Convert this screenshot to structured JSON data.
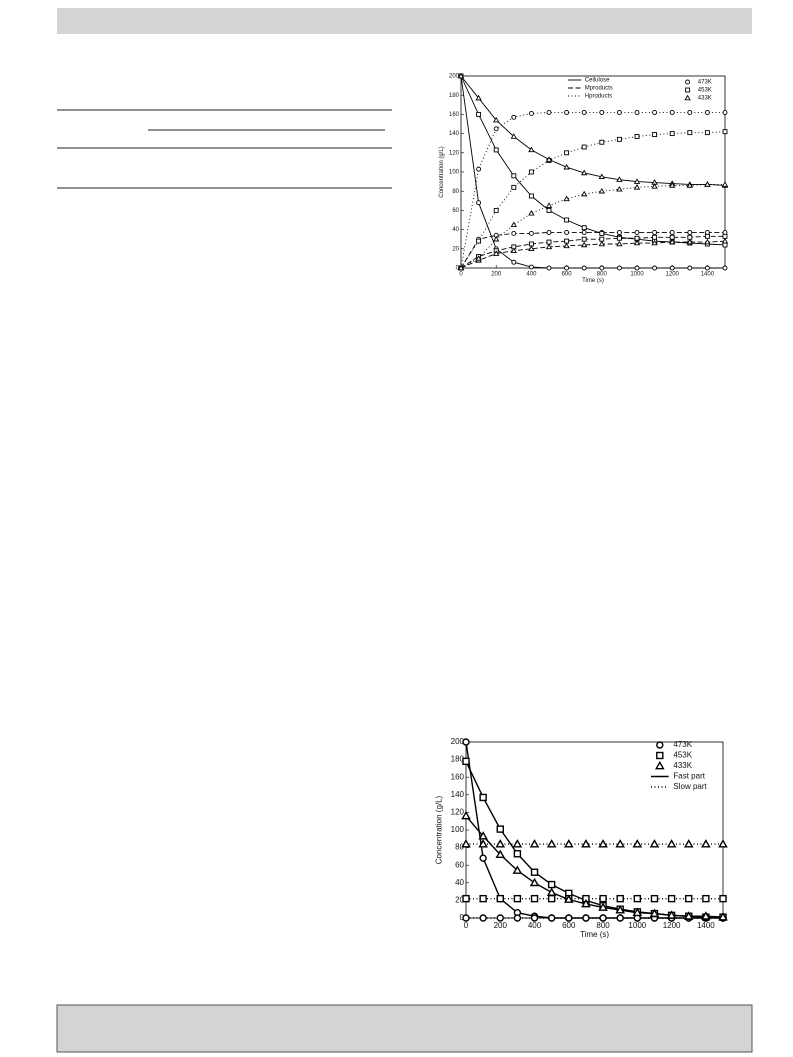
{
  "chart_data": [
    {
      "type": "line",
      "xlabel": "Time (s)",
      "ylabel": "Concentration (g/L)",
      "xlim": [
        0,
        1500
      ],
      "ylim": [
        0,
        200
      ],
      "xticks": [
        0,
        200,
        400,
        600,
        800,
        1000,
        1200,
        1400
      ],
      "yticks": [
        0,
        20,
        40,
        60,
        80,
        100,
        120,
        140,
        160,
        180,
        200
      ],
      "x": [
        0,
        100,
        200,
        300,
        400,
        500,
        600,
        700,
        800,
        900,
        1000,
        1100,
        1200,
        1300,
        1400,
        1500
      ],
      "curves": [
        {
          "name": "Cellulose",
          "dash": "solid"
        },
        {
          "name": "Mproducts",
          "dash": "dashed"
        },
        {
          "name": "Hproducts",
          "dash": "dotted"
        }
      ],
      "temperatures": [
        {
          "name": "473K",
          "marker": "circle",
          "values": [
            [
              200,
              68,
              20,
              6,
              1,
              0,
              0,
              0,
              0,
              0,
              0,
              0,
              0,
              0,
              0,
              0
            ],
            [
              0,
              30,
              34,
              36,
              36,
              37,
              37,
              37,
              37,
              37,
              37,
              37,
              37,
              37,
              37,
              37
            ],
            [
              0,
              103,
              145,
              157,
              161,
              162,
              162,
              162,
              162,
              162,
              162,
              162,
              162,
              162,
              162,
              162
            ]
          ]
        },
        {
          "name": "453K",
          "marker": "square",
          "values": [
            [
              200,
              160,
              123,
              96,
              75,
              60,
              50,
              42,
              36,
              32,
              30,
              28,
              27,
              26,
              25,
              24
            ],
            [
              0,
              12,
              18,
              22,
              25,
              27,
              28,
              30,
              30,
              31,
              31,
              32,
              32,
              32,
              33,
              33
            ],
            [
              0,
              28,
              60,
              84,
              100,
              112,
              120,
              126,
              131,
              134,
              137,
              139,
              140,
              141,
              141,
              142
            ]
          ]
        },
        {
          "name": "433K",
          "marker": "triangle",
          "values": [
            [
              200,
              177,
              154,
              137,
              123,
              113,
              105,
              99,
              95,
              92,
              90,
              89,
              88,
              87,
              87,
              86
            ],
            [
              0,
              8,
              15,
              18,
              20,
              22,
              23,
              24,
              25,
              25,
              26,
              26,
              27,
              27,
              27,
              28
            ],
            [
              0,
              10,
              30,
              45,
              57,
              65,
              72,
              77,
              80,
              82,
              84,
              85,
              86,
              86,
              87,
              87
            ]
          ]
        }
      ]
    },
    {
      "type": "line",
      "xlabel": "Time (s)",
      "ylabel": "Concentration (g/L)",
      "xlim": [
        0,
        1500
      ],
      "ylim": [
        0,
        200
      ],
      "xticks": [
        0,
        200,
        400,
        600,
        800,
        1000,
        1200,
        1400
      ],
      "yticks": [
        0,
        20,
        40,
        60,
        80,
        100,
        120,
        140,
        160,
        180,
        200
      ],
      "x": [
        0,
        100,
        200,
        300,
        400,
        500,
        600,
        700,
        800,
        900,
        1000,
        1100,
        1200,
        1300,
        1400,
        1500
      ],
      "curves": [
        {
          "name": "Fast part",
          "dash": "solid"
        },
        {
          "name": "Slow part",
          "dash": "dotted"
        }
      ],
      "temperatures": [
        {
          "name": "473K",
          "marker": "circle",
          "values": [
            [
              200,
              68,
              22,
              6,
              2,
              0,
              0,
              0,
              0,
              0,
              0,
              0,
              0,
              0,
              0,
              0
            ],
            [
              0,
              0,
              0,
              0,
              0,
              0,
              0,
              0,
              0,
              0,
              0,
              0,
              0,
              0,
              0,
              0
            ]
          ]
        },
        {
          "name": "453K",
          "marker": "square",
          "values": [
            [
              178,
              137,
              101,
              73,
              52,
              38,
              28,
              20,
              14,
              10,
              7,
              5,
              3,
              2,
              1,
              1
            ],
            [
              22,
              22,
              22,
              22,
              22,
              22,
              22,
              22,
              22,
              22,
              22,
              22,
              22,
              22,
              22,
              22
            ]
          ]
        },
        {
          "name": "433K",
          "marker": "triangle",
          "values": [
            [
              116,
              93,
              72,
              54,
              40,
              29,
              21,
              16,
              12,
              9,
              6,
              5,
              3,
              2,
              2,
              1
            ],
            [
              84,
              84,
              84,
              84,
              84,
              84,
              84,
              84,
              84,
              84,
              84,
              84,
              84,
              84,
              84,
              84
            ]
          ]
        }
      ]
    }
  ]
}
